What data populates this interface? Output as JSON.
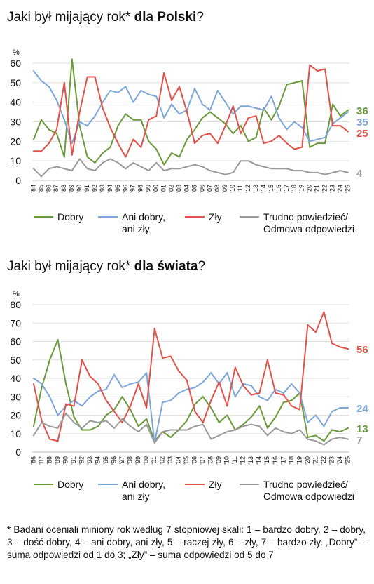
{
  "footnote": "* Badani oceniali miniony rok według 7 stopniowej skali: 1 – bardzo dobry, 2 – dobry, 3 – dość dobry, 4 – ani dobry, ani zły, 5 – raczej zły, 6 – zły, 7 – bardzo zły. „Dobry” – suma odpowiedzi od 1 do 3; „Zły” – suma odpowiedzi od 5 do 7",
  "chart_data": [
    {
      "type": "line",
      "title_prefix": "Jaki był mijający rok*",
      "title_bold": "dla Polski",
      "title_suffix": "?",
      "ylabel": "%",
      "ylim": [
        0,
        60
      ],
      "yticks": [
        0,
        10,
        20,
        30,
        40,
        50,
        60
      ],
      "grid": true,
      "legend": "bottom",
      "x": [
        "'84",
        "'85",
        "'86",
        "'87",
        "'88",
        "'89",
        "'90",
        "'91",
        "'92",
        "'93",
        "'94",
        "'95",
        "'96",
        "'97",
        "'98",
        "'99",
        "'00",
        "'01",
        "'02",
        "'03",
        "'04",
        "'05",
        "'06",
        "'07",
        "'08",
        "'09",
        "'10",
        "'11",
        "'12",
        "'13",
        "'14",
        "'15",
        "'16",
        "'17",
        "'18",
        "'19",
        "'20",
        "'21",
        "'22",
        "'23",
        "'24",
        "'25"
      ],
      "series": [
        {
          "name": "Dobry",
          "color": "#6a9a3a",
          "end_label": "36",
          "values": [
            21,
            31,
            26,
            24,
            12,
            62,
            28,
            12,
            9,
            14,
            17,
            28,
            34,
            31,
            31,
            20,
            16,
            8,
            14,
            12,
            21,
            26,
            32,
            35,
            32,
            29,
            24,
            28,
            20,
            22,
            37,
            31,
            38,
            49,
            50,
            51,
            17,
            19,
            19,
            39,
            33,
            36
          ]
        },
        {
          "name": "Ani dobry, ani zły",
          "color": "#7ea7d8",
          "end_label": "35",
          "values": [
            56,
            51,
            48,
            41,
            31,
            19,
            30,
            28,
            33,
            40,
            46,
            45,
            48,
            40,
            46,
            44,
            43,
            32,
            39,
            34,
            36,
            47,
            39,
            36,
            46,
            40,
            34,
            38,
            38,
            37,
            36,
            43,
            32,
            26,
            30,
            27,
            20,
            21,
            22,
            29,
            32,
            35
          ]
        },
        {
          "name": "Zły",
          "color": "#e0524a",
          "end_label": "25",
          "values": [
            15,
            15,
            19,
            26,
            50,
            13,
            35,
            53,
            53,
            37,
            27,
            19,
            12,
            21,
            17,
            31,
            33,
            55,
            41,
            48,
            35,
            19,
            23,
            24,
            19,
            28,
            38,
            24,
            32,
            33,
            19,
            20,
            23,
            19,
            16,
            17,
            59,
            56,
            57,
            28,
            28,
            25
          ]
        },
        {
          "name": "Trudno powiedzieć/ Odmowa odpowiedzi",
          "color": "#9a9a9a",
          "end_label": "4",
          "values": [
            6,
            2,
            6,
            7,
            6,
            5,
            11,
            6,
            5,
            9,
            11,
            9,
            6,
            9,
            7,
            5,
            9,
            5,
            6,
            6,
            7,
            8,
            7,
            5,
            4,
            3,
            4,
            10,
            10,
            8,
            7,
            6,
            6,
            6,
            5,
            5,
            4,
            4,
            3,
            4,
            5,
            4
          ]
        }
      ]
    },
    {
      "type": "line",
      "title_prefix": "Jaki był mijający rok*",
      "title_bold": "dla świata",
      "title_suffix": "?",
      "ylabel": "%",
      "ylim": [
        0,
        80
      ],
      "yticks": [
        0,
        10,
        20,
        30,
        40,
        50,
        60,
        70,
        80
      ],
      "grid": true,
      "legend": "bottom",
      "x": [
        "'86",
        "'87",
        "'88",
        "'89",
        "'90",
        "'91",
        "'92",
        "'93",
        "'94",
        "'95",
        "'96",
        "'97",
        "'98",
        "'99",
        "'00",
        "'01",
        "'02",
        "'03",
        "'04",
        "'05",
        "'06",
        "'07",
        "'08",
        "'09",
        "'10",
        "'11",
        "'12",
        "'13",
        "'14",
        "'15",
        "'16",
        "'17",
        "'18",
        "'19",
        "'20",
        "'21",
        "'22",
        "'23",
        "'24",
        "'25"
      ],
      "series": [
        {
          "name": "Dobry",
          "color": "#6a9a3a",
          "end_label": "13",
          "values": [
            14,
            35,
            50,
            61,
            37,
            19,
            12,
            12,
            14,
            20,
            23,
            30,
            23,
            14,
            18,
            6,
            11,
            8,
            12,
            17,
            26,
            30,
            24,
            16,
            20,
            12,
            15,
            19,
            25,
            13,
            19,
            27,
            28,
            32,
            8,
            9,
            6,
            12,
            11,
            13
          ]
        },
        {
          "name": "Ani dobry, ani zły",
          "color": "#7ea7d8",
          "end_label": "24",
          "values": [
            40,
            37,
            30,
            20,
            25,
            28,
            25,
            30,
            33,
            34,
            42,
            35,
            37,
            38,
            43,
            5,
            27,
            28,
            32,
            34,
            35,
            38,
            43,
            37,
            43,
            30,
            37,
            36,
            30,
            28,
            34,
            32,
            37,
            32,
            16,
            20,
            14,
            22,
            24,
            24
          ]
        },
        {
          "name": "Zły",
          "color": "#e0524a",
          "end_label": "56",
          "values": [
            37,
            17,
            7,
            6,
            26,
            25,
            50,
            41,
            37,
            28,
            22,
            16,
            25,
            37,
            24,
            67,
            51,
            52,
            44,
            39,
            22,
            16,
            28,
            38,
            25,
            46,
            36,
            31,
            32,
            50,
            32,
            31,
            25,
            23,
            69,
            65,
            76,
            59,
            57,
            56
          ]
        },
        {
          "name": "Trudno powiedzieć/ Odmowa odpowiedzi",
          "color": "#9a9a9a",
          "end_label": "7",
          "values": [
            9,
            16,
            14,
            13,
            21,
            16,
            13,
            17,
            16,
            17,
            13,
            18,
            14,
            11,
            15,
            5,
            11,
            12,
            12,
            12,
            14,
            15,
            7,
            9,
            11,
            12,
            14,
            15,
            14,
            9,
            13,
            11,
            10,
            12,
            7,
            6,
            4,
            7,
            8,
            7
          ]
        }
      ]
    }
  ]
}
